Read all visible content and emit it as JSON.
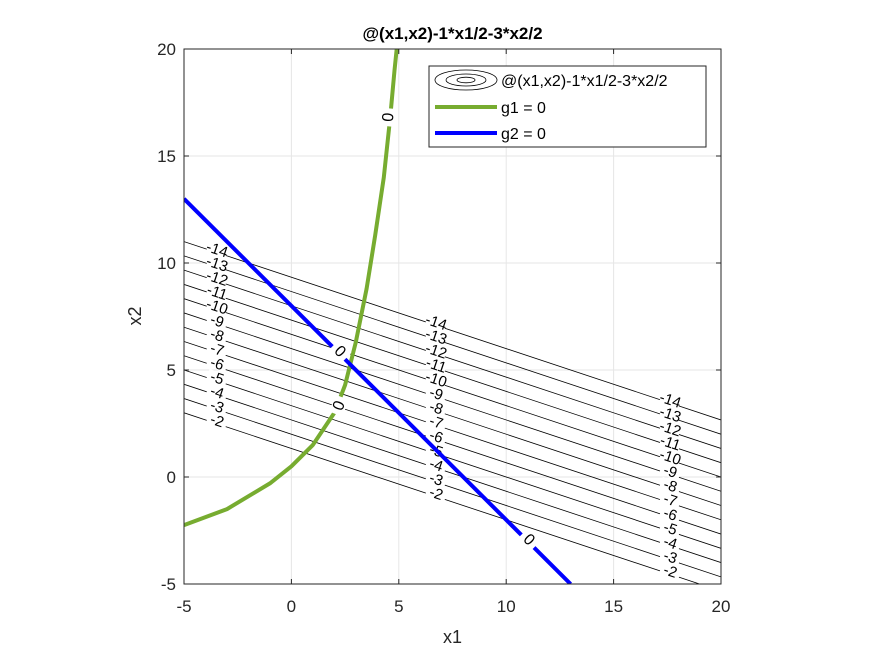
{
  "chart_data": {
    "type": "line",
    "title": "@(x1,x2)-1*x1/2-3*x2/2",
    "xlabel": "x1",
    "ylabel": "x2",
    "xlim": [
      -5,
      20
    ],
    "ylim": [
      -5,
      20
    ],
    "xticks": [
      "-5",
      "0",
      "5",
      "10",
      "15",
      "20"
    ],
    "yticks": [
      "-5",
      "0",
      "5",
      "10",
      "15",
      "20"
    ],
    "grid": true,
    "legend_position": "top-right",
    "objective": {
      "name": "@(x1,x2)-1*x1/2-3*x2/2",
      "contour_levels": [
        -14,
        -13,
        -12,
        -11,
        -10,
        -9,
        -8,
        -7,
        -6,
        -5,
        -4,
        -3,
        -2
      ],
      "label_x1": [
        -3.5,
        6.7,
        17.6
      ],
      "x1_domain": [
        -5,
        20
      ]
    },
    "series": [
      {
        "name": "g1 = 0",
        "color": "#77ac30",
        "x": [
          -5,
          -3,
          -1,
          0,
          1,
          2,
          2.5,
          3,
          3.5,
          3.9,
          4.3,
          4.6,
          4.8,
          4.9
        ],
        "y": [
          -2.25,
          -1.5,
          -0.3,
          0.5,
          1.5,
          3.0,
          4.3,
          6.3,
          8.8,
          11.3,
          14.0,
          16.8,
          19.0,
          20.0
        ],
        "contour_label": "0",
        "label_points": [
          {
            "x": 4.6,
            "y": 16.8
          },
          {
            "x": 2.3,
            "y": 3.3
          }
        ]
      },
      {
        "name": "g2 = 0",
        "color": "#0000ff",
        "x": [
          -5,
          13
        ],
        "y": [
          13,
          -5
        ],
        "contour_label": "0",
        "label_points": [
          {
            "x": 2.2,
            "y": 5.8
          },
          {
            "x": 11.0,
            "y": -3.0
          }
        ]
      }
    ]
  }
}
